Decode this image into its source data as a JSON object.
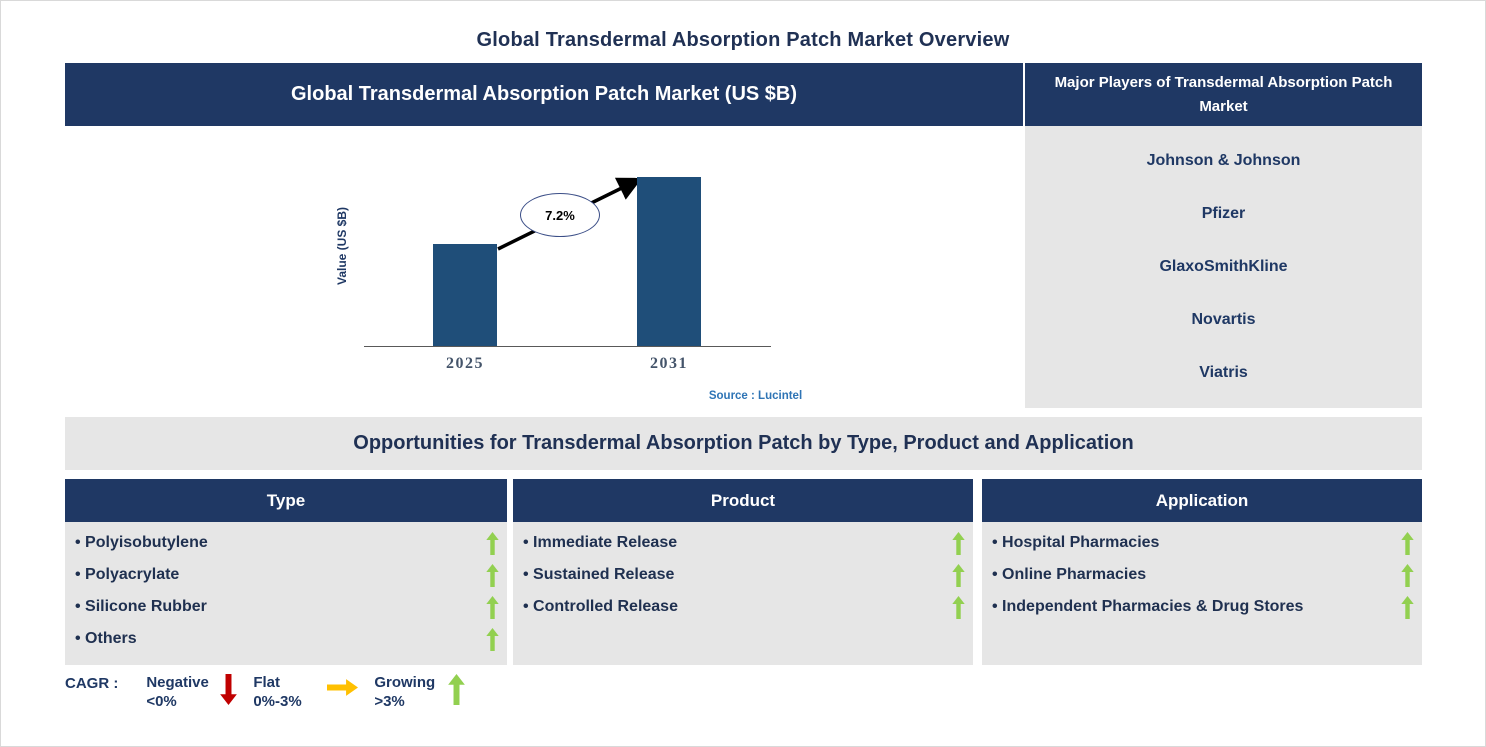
{
  "page": {
    "title": "Global Transdermal Absorption Patch Market Overview"
  },
  "market_panel": {
    "header": "Global Transdermal Absorption Patch Market (US $B)",
    "source": "Source : Lucintel"
  },
  "chart_data": {
    "type": "bar",
    "title": "Global Transdermal Absorption Patch Market (US $B)",
    "categories": [
      "2025",
      "2031"
    ],
    "values": [
      1.0,
      1.66
    ],
    "values_note": "relative bar heights; axis has no numeric ticks",
    "xlabel": "",
    "ylabel": "Value (US $B)",
    "growth_annotation": "7.2%",
    "grid": false,
    "legend_position": "none",
    "bar_color": "#1f4e79"
  },
  "players_panel": {
    "header": "Major Players of Transdermal Absorption Patch Market",
    "companies": [
      "Johnson & Johnson",
      "Pfizer",
      "GlaxoSmithKline",
      "Novartis",
      "Viatris"
    ]
  },
  "opportunities": {
    "banner": "Opportunities for Transdermal Absorption Patch by Type, Product and Application",
    "columns": [
      {
        "header": "Type",
        "items": [
          "Polyisobutylene",
          "Polyacrylate",
          "Silicone Rubber",
          "Others"
        ],
        "trends": [
          "growing",
          "growing",
          "growing",
          "growing"
        ]
      },
      {
        "header": "Product",
        "items": [
          "Immediate Release",
          "Sustained Release",
          "Controlled Release"
        ],
        "trends": [
          "growing",
          "growing",
          "growing"
        ]
      },
      {
        "header": "Application",
        "items": [
          "Hospital Pharmacies",
          "Online Pharmacies",
          "Independent Pharmacies & Drug Stores"
        ],
        "trends": [
          "growing",
          "growing",
          "growing"
        ]
      }
    ]
  },
  "cagr_legend": {
    "label": "CAGR :",
    "entries": [
      {
        "name": "Negative",
        "range": "<0%",
        "direction": "down",
        "color": "#c00000"
      },
      {
        "name": "Flat",
        "range": "0%-3%",
        "direction": "right",
        "color": "#ffc000"
      },
      {
        "name": "Growing",
        "range": ">3%",
        "direction": "up",
        "color": "#92d050"
      }
    ]
  },
  "colors": {
    "navy": "#1f3864",
    "bar_blue": "#1f4e79",
    "panel_gray": "#e6e6e6",
    "growing_green": "#92d050",
    "negative_red": "#c00000",
    "flat_amber": "#ffc000",
    "source_blue": "#2e74b5",
    "tick_gray_blue": "#44546a"
  }
}
